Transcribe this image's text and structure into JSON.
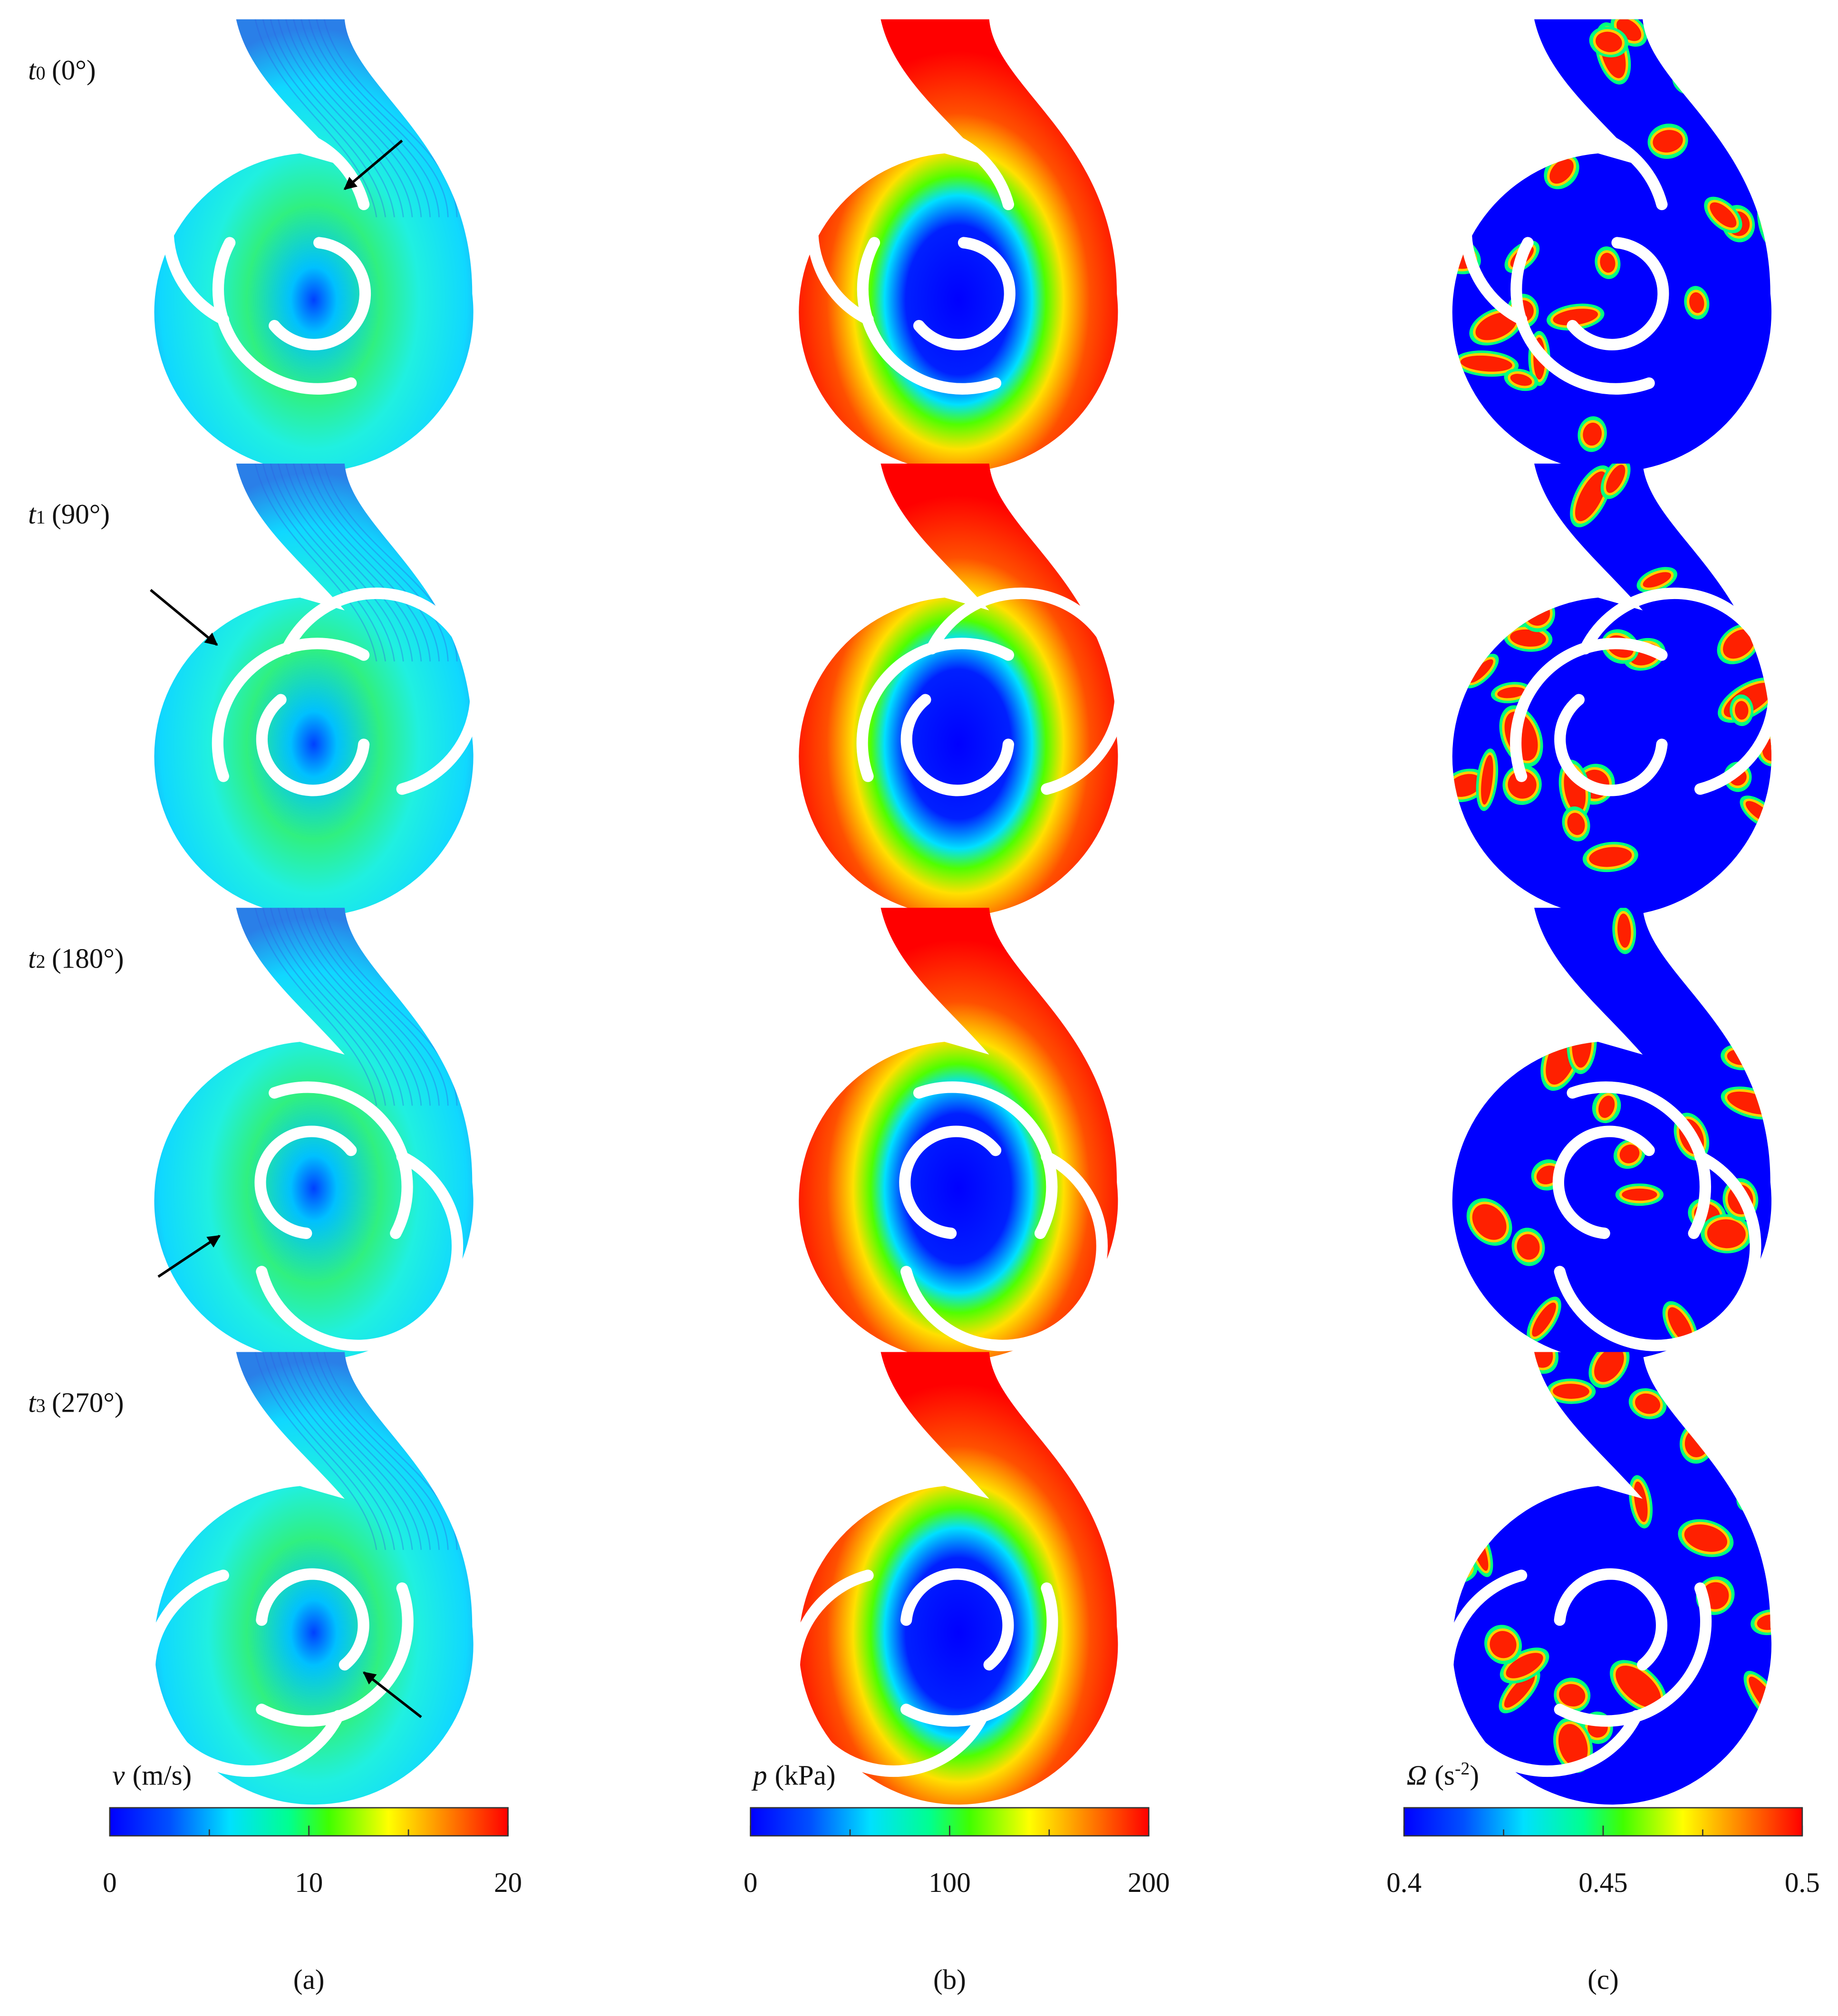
{
  "rows": [
    {
      "symbol": "t",
      "sub": "0",
      "angle": "(0°)"
    },
    {
      "symbol": "t",
      "sub": "1",
      "angle": "(90°)"
    },
    {
      "symbol": "t",
      "sub": "2",
      "angle": "(180°)"
    },
    {
      "symbol": "t",
      "sub": "3",
      "angle": "(270°)"
    }
  ],
  "colorbars": [
    {
      "symbol": "v",
      "unit": "(m/s)",
      "lim": [
        0,
        20
      ],
      "ticks": [
        0,
        10,
        20
      ]
    },
    {
      "symbol": "p",
      "unit": "(kPa)",
      "lim": [
        0,
        200
      ],
      "ticks": [
        0,
        100,
        200
      ]
    },
    {
      "symbol": "Ω",
      "unit": "(s",
      "unit_sup": "-2",
      "unit_end": ")",
      "lim": [
        0.4,
        0.5
      ],
      "ticks": [
        0.4,
        0.45,
        0.5
      ]
    }
  ],
  "panels": [
    "(a)",
    "(b)",
    "(c)"
  ]
}
